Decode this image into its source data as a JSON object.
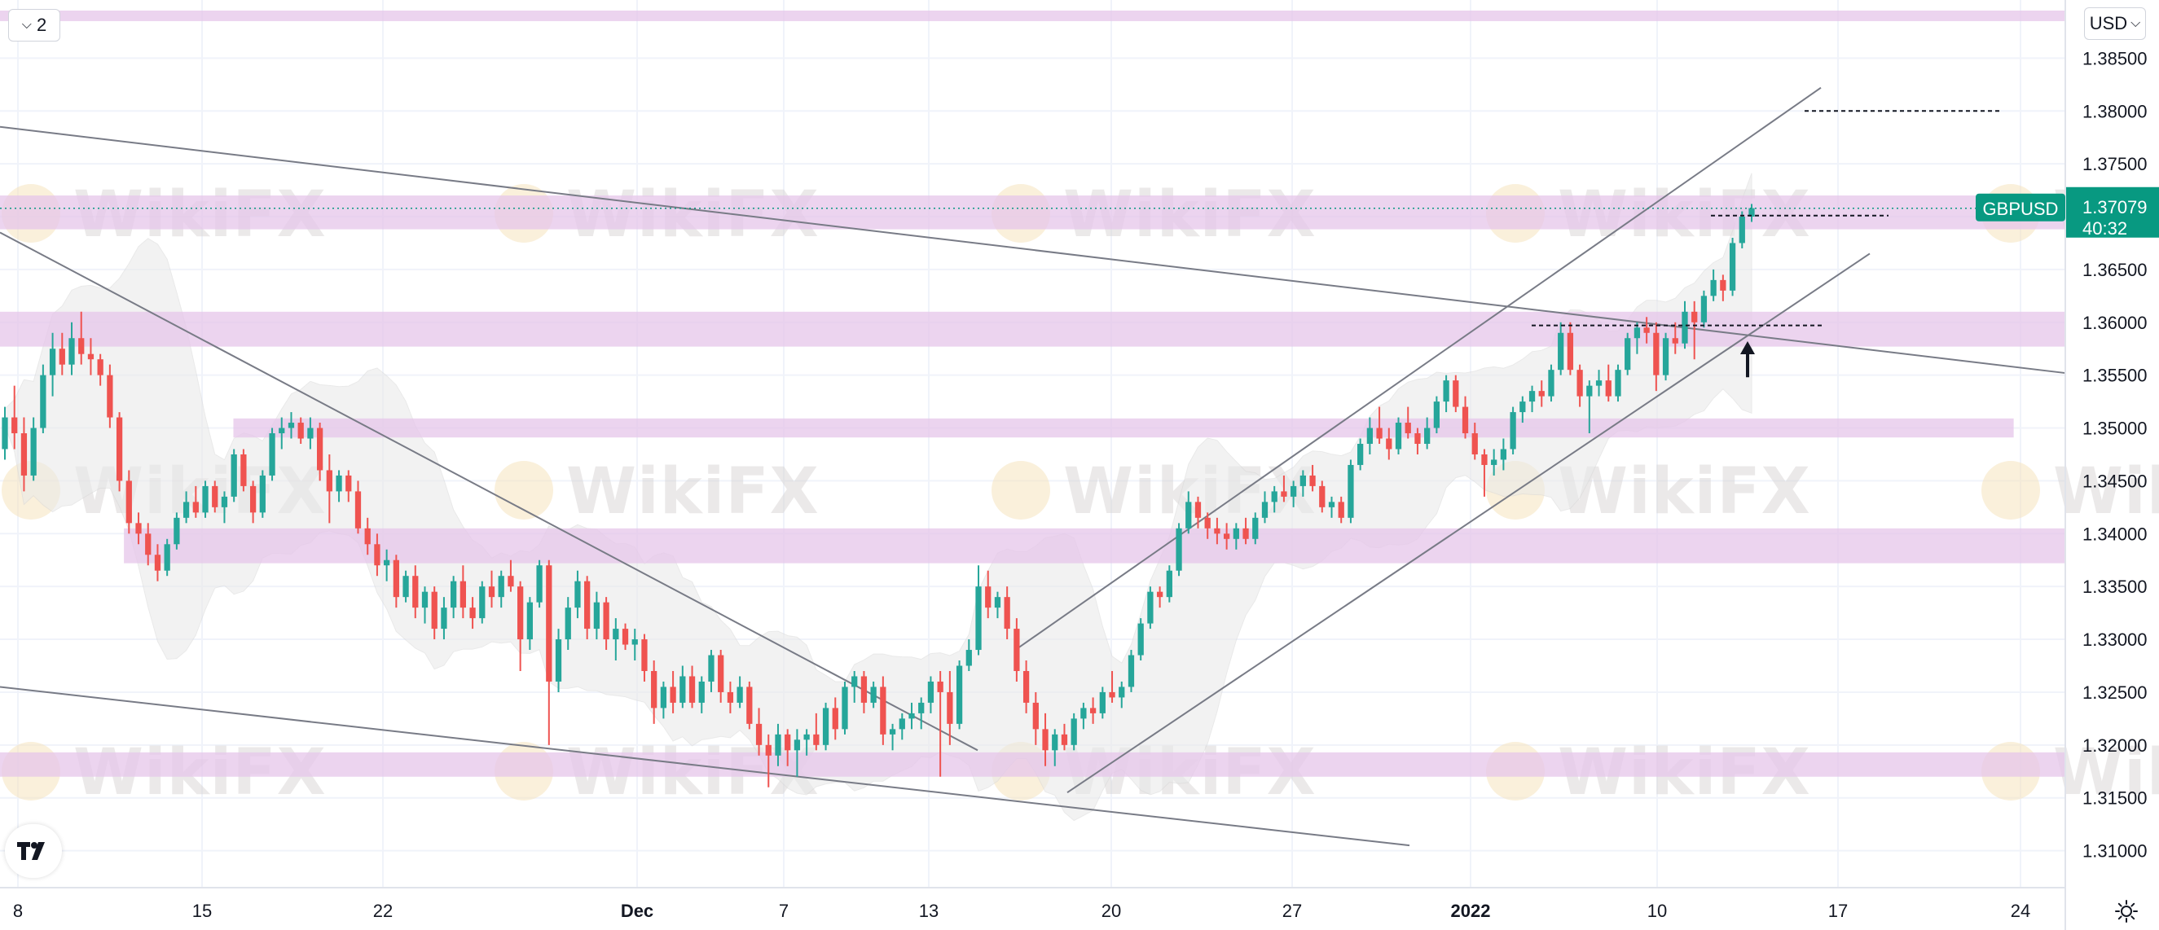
{
  "toolbar": {
    "indicator_count": "2",
    "currency": "USD",
    "collapse_icon": "chevron-down-icon",
    "settings_icon": "sun-gear-icon",
    "logo_icon": "tradingview-logo-icon"
  },
  "watermark": "WikiFX",
  "chart_data": {
    "type": "candlestick",
    "symbol": "GBPUSD",
    "last_price": "1.37079",
    "countdown": "40:32",
    "ylim": [
      1.3065,
      1.3905
    ],
    "y_ticks": [
      "1.38500",
      "1.38000",
      "1.37500",
      "1.37000",
      "1.36500",
      "1.36000",
      "1.35500",
      "1.35000",
      "1.34500",
      "1.34000",
      "1.33500",
      "1.33000",
      "1.32500",
      "1.32000",
      "1.31500",
      "1.31000"
    ],
    "x_ticks": [
      "8",
      "15",
      "22",
      "Dec",
      "7",
      "13",
      "20",
      "27",
      "2022",
      "10",
      "17",
      "24"
    ],
    "bold_x_ticks": [
      "Dec",
      "2022"
    ],
    "candles": [
      [
        1.348,
        1.352,
        1.347,
        1.351
      ],
      [
        1.351,
        1.354,
        1.348,
        1.3495
      ],
      [
        1.3495,
        1.351,
        1.344,
        1.3455
      ],
      [
        1.3455,
        1.351,
        1.345,
        1.35
      ],
      [
        1.35,
        1.356,
        1.3495,
        1.355
      ],
      [
        1.355,
        1.359,
        1.353,
        1.3575
      ],
      [
        1.3575,
        1.359,
        1.355,
        1.356
      ],
      [
        1.356,
        1.36,
        1.355,
        1.3585
      ],
      [
        1.3585,
        1.361,
        1.356,
        1.357
      ],
      [
        1.357,
        1.3585,
        1.355,
        1.3565
      ],
      [
        1.3565,
        1.357,
        1.354,
        1.355
      ],
      [
        1.355,
        1.356,
        1.35,
        1.351
      ],
      [
        1.351,
        1.3515,
        1.344,
        1.345
      ],
      [
        1.345,
        1.346,
        1.34,
        1.341
      ],
      [
        1.341,
        1.342,
        1.339,
        1.34
      ],
      [
        1.34,
        1.341,
        1.337,
        1.338
      ],
      [
        1.338,
        1.339,
        1.3355,
        1.3365
      ],
      [
        1.3365,
        1.3395,
        1.336,
        1.339
      ],
      [
        1.339,
        1.342,
        1.3385,
        1.3415
      ],
      [
        1.3415,
        1.344,
        1.341,
        1.343
      ],
      [
        1.343,
        1.3445,
        1.3415,
        1.342
      ],
      [
        1.342,
        1.345,
        1.3415,
        1.3445
      ],
      [
        1.3445,
        1.345,
        1.342,
        1.3425
      ],
      [
        1.3425,
        1.344,
        1.341,
        1.3435
      ],
      [
        1.3435,
        1.348,
        1.343,
        1.3475
      ],
      [
        1.3475,
        1.348,
        1.344,
        1.3445
      ],
      [
        1.3445,
        1.345,
        1.341,
        1.342
      ],
      [
        1.342,
        1.346,
        1.3415,
        1.3455
      ],
      [
        1.3455,
        1.35,
        1.345,
        1.3495
      ],
      [
        1.3495,
        1.351,
        1.348,
        1.35
      ],
      [
        1.35,
        1.3515,
        1.349,
        1.3505
      ],
      [
        1.3505,
        1.351,
        1.3485,
        1.349
      ],
      [
        1.349,
        1.351,
        1.348,
        1.35
      ],
      [
        1.35,
        1.3505,
        1.345,
        1.346
      ],
      [
        1.346,
        1.3475,
        1.341,
        1.344
      ],
      [
        1.344,
        1.346,
        1.343,
        1.3455
      ],
      [
        1.3455,
        1.346,
        1.343,
        1.344
      ],
      [
        1.344,
        1.345,
        1.34,
        1.3405
      ],
      [
        1.3405,
        1.3415,
        1.338,
        1.339
      ],
      [
        1.339,
        1.34,
        1.336,
        1.337
      ],
      [
        1.337,
        1.3385,
        1.3355,
        1.3375
      ],
      [
        1.3375,
        1.338,
        1.333,
        1.334
      ],
      [
        1.334,
        1.3365,
        1.3335,
        1.336
      ],
      [
        1.336,
        1.337,
        1.332,
        1.333
      ],
      [
        1.333,
        1.335,
        1.3315,
        1.3345
      ],
      [
        1.3345,
        1.335,
        1.33,
        1.331
      ],
      [
        1.331,
        1.334,
        1.33,
        1.333
      ],
      [
        1.333,
        1.336,
        1.332,
        1.3355
      ],
      [
        1.3355,
        1.337,
        1.332,
        1.333
      ],
      [
        1.333,
        1.334,
        1.331,
        1.332
      ],
      [
        1.332,
        1.3355,
        1.3315,
        1.335
      ],
      [
        1.335,
        1.3365,
        1.333,
        1.334
      ],
      [
        1.334,
        1.3365,
        1.333,
        1.336
      ],
      [
        1.336,
        1.3375,
        1.3345,
        1.335
      ],
      [
        1.335,
        1.3355,
        1.327,
        1.33
      ],
      [
        1.33,
        1.334,
        1.329,
        1.3335
      ],
      [
        1.3335,
        1.3375,
        1.333,
        1.337
      ],
      [
        1.337,
        1.3375,
        1.32,
        1.326
      ],
      [
        1.326,
        1.331,
        1.325,
        1.33
      ],
      [
        1.33,
        1.334,
        1.329,
        1.333
      ],
      [
        1.333,
        1.3365,
        1.332,
        1.3355
      ],
      [
        1.3355,
        1.336,
        1.33,
        1.331
      ],
      [
        1.331,
        1.3345,
        1.33,
        1.3335
      ],
      [
        1.3335,
        1.334,
        1.329,
        1.33
      ],
      [
        1.33,
        1.332,
        1.328,
        1.331
      ],
      [
        1.331,
        1.3315,
        1.329,
        1.3295
      ],
      [
        1.3295,
        1.331,
        1.328,
        1.33
      ],
      [
        1.33,
        1.3305,
        1.326,
        1.327
      ],
      [
        1.327,
        1.328,
        1.322,
        1.3235
      ],
      [
        1.3235,
        1.326,
        1.3225,
        1.3255
      ],
      [
        1.3255,
        1.327,
        1.323,
        1.324
      ],
      [
        1.324,
        1.3275,
        1.3235,
        1.3265
      ],
      [
        1.3265,
        1.3275,
        1.3235,
        1.324
      ],
      [
        1.324,
        1.3265,
        1.323,
        1.326
      ],
      [
        1.326,
        1.329,
        1.325,
        1.3285
      ],
      [
        1.3285,
        1.329,
        1.324,
        1.325
      ],
      [
        1.325,
        1.326,
        1.323,
        1.324
      ],
      [
        1.324,
        1.3265,
        1.3235,
        1.3255
      ],
      [
        1.3255,
        1.326,
        1.3215,
        1.322
      ],
      [
        1.322,
        1.3235,
        1.319,
        1.32
      ],
      [
        1.32,
        1.321,
        1.316,
        1.319
      ],
      [
        1.319,
        1.322,
        1.318,
        1.321
      ],
      [
        1.321,
        1.3215,
        1.318,
        1.3195
      ],
      [
        1.3195,
        1.3215,
        1.317,
        1.3205
      ],
      [
        1.3205,
        1.3215,
        1.319,
        1.321
      ],
      [
        1.321,
        1.323,
        1.3195,
        1.32
      ],
      [
        1.32,
        1.324,
        1.3195,
        1.3235
      ],
      [
        1.3235,
        1.3245,
        1.3205,
        1.3215
      ],
      [
        1.3215,
        1.326,
        1.321,
        1.3255
      ],
      [
        1.3255,
        1.327,
        1.324,
        1.3265
      ],
      [
        1.3265,
        1.327,
        1.323,
        1.324
      ],
      [
        1.324,
        1.326,
        1.3235,
        1.3255
      ],
      [
        1.3255,
        1.3265,
        1.32,
        1.321
      ],
      [
        1.321,
        1.322,
        1.3195,
        1.3215
      ],
      [
        1.3215,
        1.323,
        1.3205,
        1.3225
      ],
      [
        1.3225,
        1.324,
        1.3215,
        1.323
      ],
      [
        1.323,
        1.3245,
        1.3215,
        1.324
      ],
      [
        1.324,
        1.3265,
        1.323,
        1.326
      ],
      [
        1.326,
        1.327,
        1.317,
        1.325
      ],
      [
        1.325,
        1.327,
        1.32,
        1.322
      ],
      [
        1.322,
        1.328,
        1.3215,
        1.3275
      ],
      [
        1.3275,
        1.33,
        1.327,
        1.329
      ],
      [
        1.329,
        1.337,
        1.3285,
        1.335
      ],
      [
        1.335,
        1.3365,
        1.332,
        1.333
      ],
      [
        1.333,
        1.3345,
        1.332,
        1.334
      ],
      [
        1.334,
        1.335,
        1.33,
        1.331
      ],
      [
        1.331,
        1.332,
        1.326,
        1.327
      ],
      [
        1.327,
        1.328,
        1.323,
        1.324
      ],
      [
        1.324,
        1.325,
        1.32,
        1.3215
      ],
      [
        1.3215,
        1.323,
        1.318,
        1.3195
      ],
      [
        1.3195,
        1.3215,
        1.318,
        1.321
      ],
      [
        1.321,
        1.322,
        1.3195,
        1.32
      ],
      [
        1.32,
        1.323,
        1.3195,
        1.3225
      ],
      [
        1.3225,
        1.324,
        1.3215,
        1.3235
      ],
      [
        1.3235,
        1.3245,
        1.322,
        1.323
      ],
      [
        1.323,
        1.3255,
        1.3225,
        1.325
      ],
      [
        1.325,
        1.327,
        1.324,
        1.3245
      ],
      [
        1.3245,
        1.326,
        1.3235,
        1.3255
      ],
      [
        1.3255,
        1.329,
        1.325,
        1.3285
      ],
      [
        1.3285,
        1.332,
        1.328,
        1.3315
      ],
      [
        1.3315,
        1.335,
        1.331,
        1.3345
      ],
      [
        1.3345,
        1.335,
        1.333,
        1.334
      ],
      [
        1.334,
        1.337,
        1.3335,
        1.3365
      ],
      [
        1.3365,
        1.341,
        1.336,
        1.3405
      ],
      [
        1.3405,
        1.344,
        1.34,
        1.343
      ],
      [
        1.343,
        1.3435,
        1.3405,
        1.3415
      ],
      [
        1.3415,
        1.342,
        1.3395,
        1.3405
      ],
      [
        1.3405,
        1.3415,
        1.339,
        1.34
      ],
      [
        1.34,
        1.341,
        1.3385,
        1.3395
      ],
      [
        1.3395,
        1.341,
        1.3385,
        1.3405
      ],
      [
        1.3405,
        1.3415,
        1.339,
        1.3395
      ],
      [
        1.3395,
        1.342,
        1.339,
        1.3415
      ],
      [
        1.3415,
        1.344,
        1.341,
        1.343
      ],
      [
        1.343,
        1.3445,
        1.342,
        1.344
      ],
      [
        1.344,
        1.3455,
        1.343,
        1.3435
      ],
      [
        1.3435,
        1.345,
        1.3425,
        1.3445
      ],
      [
        1.3445,
        1.346,
        1.3435,
        1.3455
      ],
      [
        1.3455,
        1.3465,
        1.344,
        1.3445
      ],
      [
        1.3445,
        1.345,
        1.342,
        1.3425
      ],
      [
        1.3425,
        1.3435,
        1.3415,
        1.343
      ],
      [
        1.343,
        1.3435,
        1.341,
        1.3415
      ],
      [
        1.3415,
        1.347,
        1.341,
        1.3465
      ],
      [
        1.3465,
        1.349,
        1.346,
        1.3485
      ],
      [
        1.3485,
        1.351,
        1.3475,
        1.35
      ],
      [
        1.35,
        1.352,
        1.3485,
        1.349
      ],
      [
        1.349,
        1.35,
        1.347,
        1.348
      ],
      [
        1.348,
        1.351,
        1.3475,
        1.3505
      ],
      [
        1.3505,
        1.352,
        1.349,
        1.3495
      ],
      [
        1.3495,
        1.35,
        1.3475,
        1.3485
      ],
      [
        1.3485,
        1.351,
        1.348,
        1.35
      ],
      [
        1.35,
        1.353,
        1.3495,
        1.3525
      ],
      [
        1.3525,
        1.355,
        1.3515,
        1.3545
      ],
      [
        1.3545,
        1.355,
        1.3515,
        1.352
      ],
      [
        1.352,
        1.353,
        1.349,
        1.3495
      ],
      [
        1.3495,
        1.3505,
        1.347,
        1.3475
      ],
      [
        1.3475,
        1.348,
        1.3435,
        1.3465
      ],
      [
        1.3465,
        1.348,
        1.3455,
        1.347
      ],
      [
        1.347,
        1.349,
        1.346,
        1.348
      ],
      [
        1.348,
        1.352,
        1.3475,
        1.3515
      ],
      [
        1.3515,
        1.353,
        1.3505,
        1.3525
      ],
      [
        1.3525,
        1.354,
        1.3515,
        1.3535
      ],
      [
        1.3535,
        1.3545,
        1.352,
        1.353
      ],
      [
        1.353,
        1.356,
        1.3525,
        1.3555
      ],
      [
        1.3555,
        1.36,
        1.355,
        1.359
      ],
      [
        1.359,
        1.36,
        1.355,
        1.3555
      ],
      [
        1.3555,
        1.356,
        1.352,
        1.353
      ],
      [
        1.353,
        1.3545,
        1.3495,
        1.354
      ],
      [
        1.354,
        1.3555,
        1.353,
        1.3545
      ],
      [
        1.3545,
        1.356,
        1.3525,
        1.353
      ],
      [
        1.353,
        1.356,
        1.3525,
        1.3555
      ],
      [
        1.3555,
        1.359,
        1.355,
        1.3585
      ],
      [
        1.3585,
        1.36,
        1.357,
        1.3595
      ],
      [
        1.3595,
        1.3605,
        1.358,
        1.359
      ],
      [
        1.359,
        1.36,
        1.3535,
        1.355
      ],
      [
        1.355,
        1.359,
        1.3545,
        1.3585
      ],
      [
        1.3585,
        1.36,
        1.357,
        1.358
      ],
      [
        1.358,
        1.362,
        1.3575,
        1.361
      ],
      [
        1.361,
        1.362,
        1.3565,
        1.36
      ],
      [
        1.36,
        1.363,
        1.3595,
        1.3625
      ],
      [
        1.3625,
        1.365,
        1.362,
        1.364
      ],
      [
        1.364,
        1.3645,
        1.362,
        1.363
      ],
      [
        1.363,
        1.368,
        1.3625,
        1.3675
      ],
      [
        1.3675,
        1.3705,
        1.367,
        1.37
      ],
      [
        1.37,
        1.3712,
        1.3695,
        1.3708
      ]
    ],
    "zones": [
      {
        "from": 1.3885,
        "to": 1.3895,
        "x_from": 0.0,
        "x_to": 1.0
      },
      {
        "from": 1.3688,
        "to": 1.372,
        "x_from": 0.0,
        "x_to": 1.0
      },
      {
        "from": 1.3577,
        "to": 1.361,
        "x_from": 0.0,
        "x_to": 1.0
      },
      {
        "from": 1.3491,
        "to": 1.3509,
        "x_from": 0.113,
        "x_to": 0.975
      },
      {
        "from": 1.3372,
        "to": 1.3405,
        "x_from": 0.06,
        "x_to": 1.0
      },
      {
        "from": 1.317,
        "to": 1.3193,
        "x_from": 0.0,
        "x_to": 1.0
      }
    ],
    "colors": {
      "up": "#26a69a",
      "down": "#ef5350",
      "zone": "#e5c6ea",
      "band": "#e9e9e9",
      "badge": "#089981",
      "line": "#787b86"
    }
  }
}
